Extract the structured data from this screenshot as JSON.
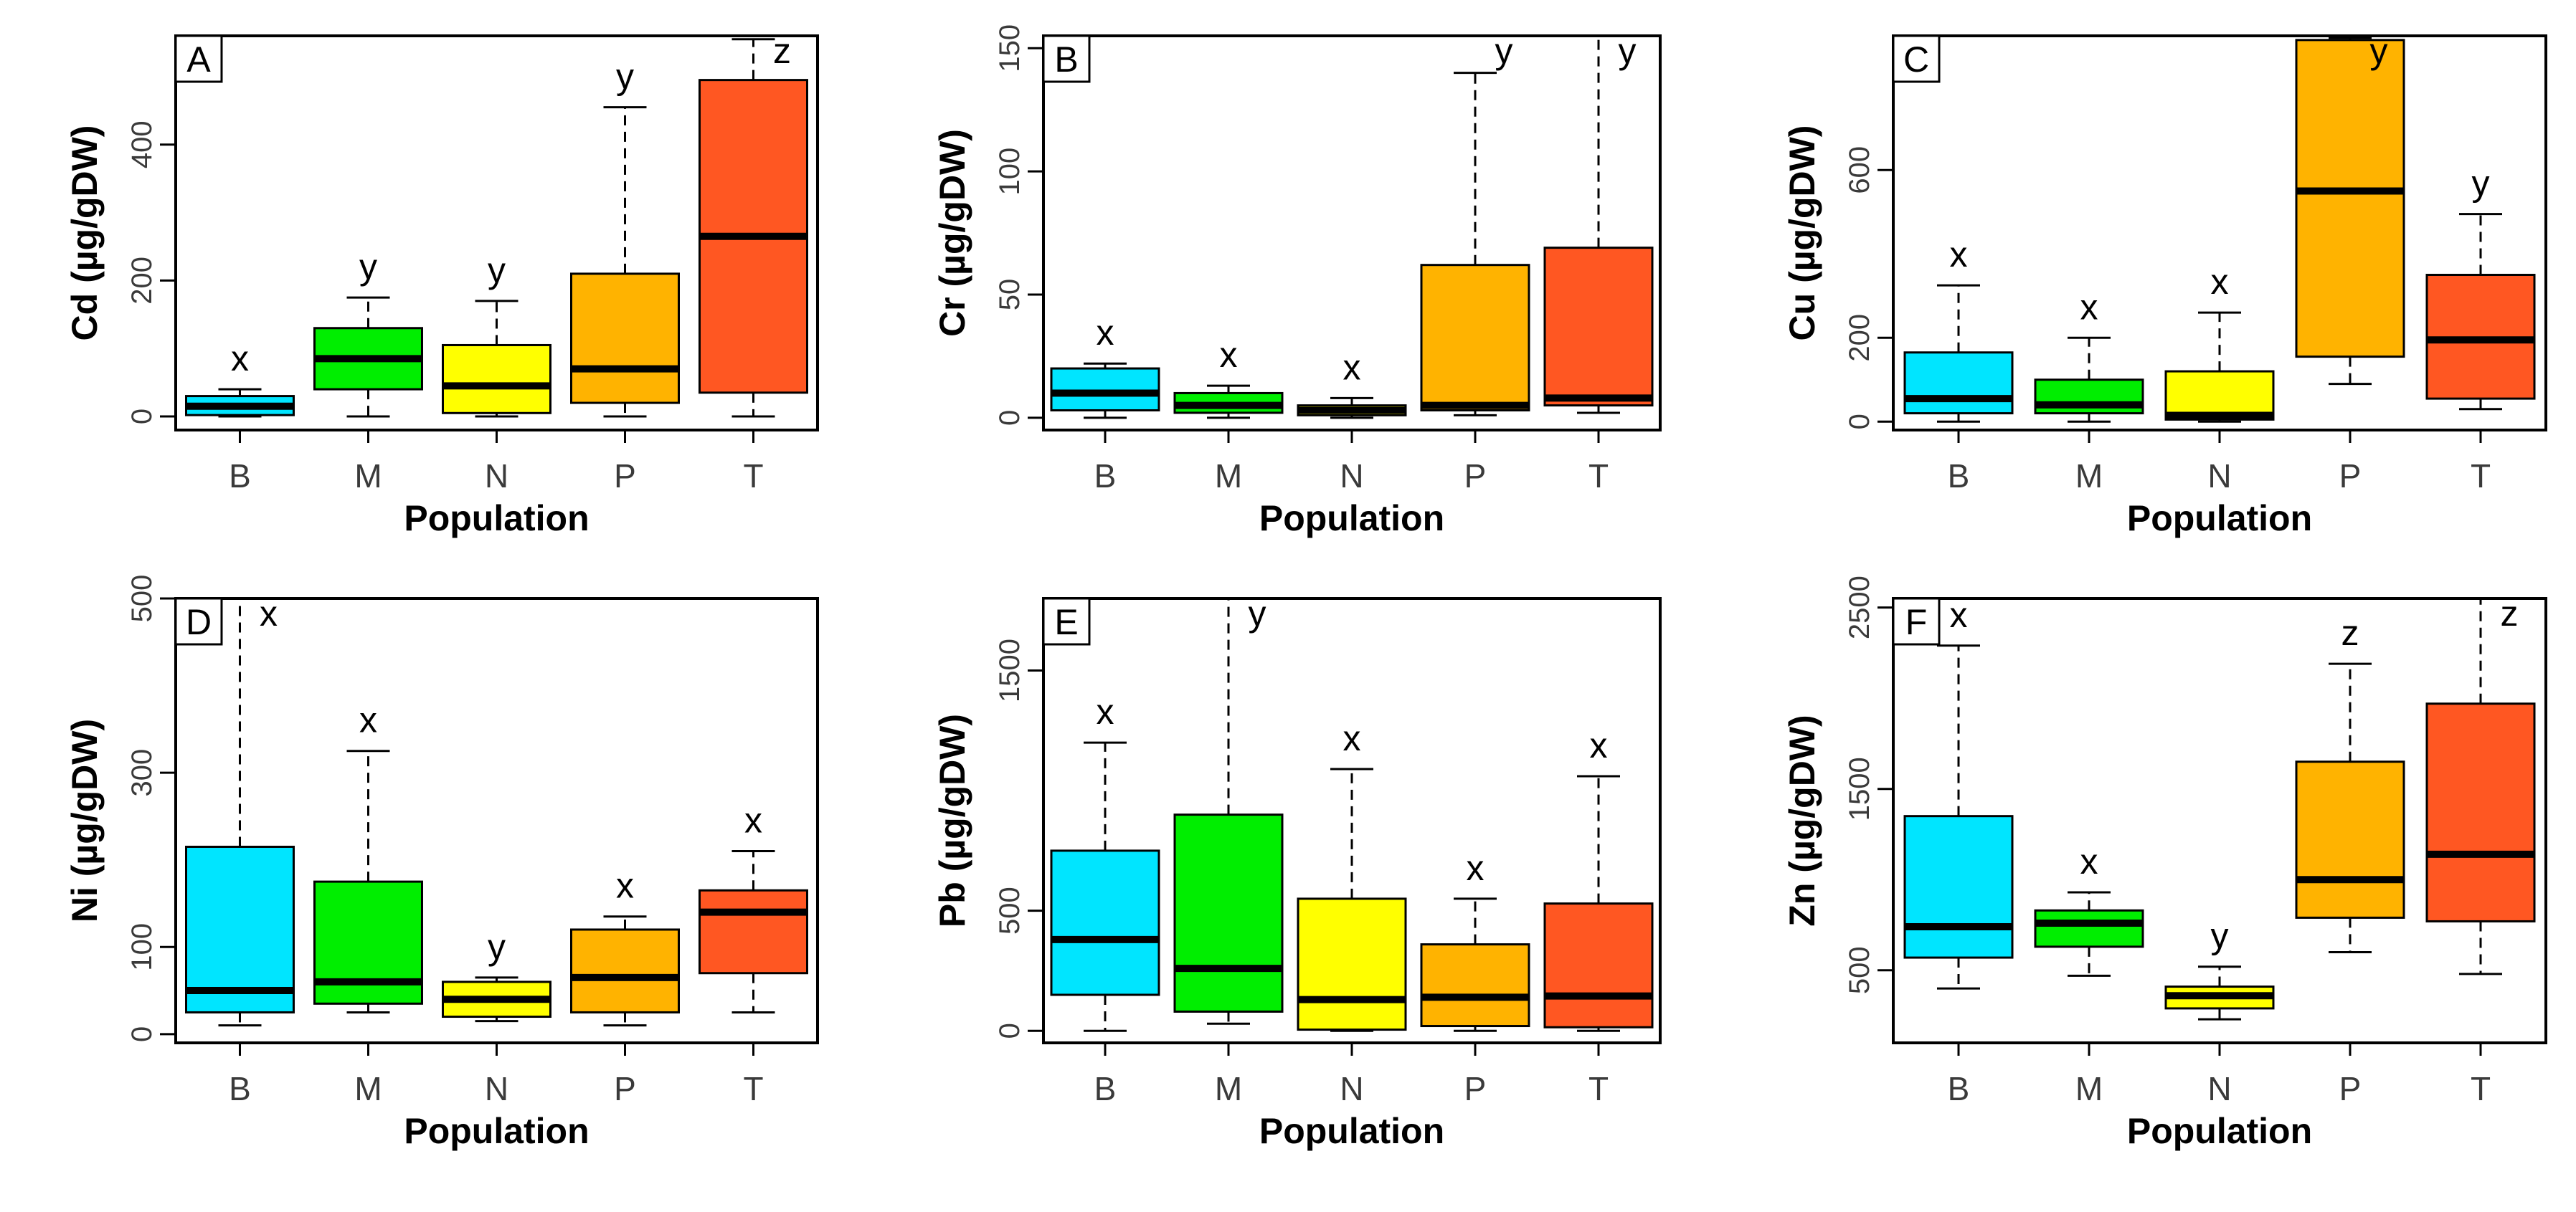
{
  "chart_data": [
    {
      "type": "box",
      "panel": "A",
      "ylabel": "Cd (µg/gDW)",
      "xlabel": "Population",
      "ylim": [
        -20,
        560
      ],
      "yticks": [
        0,
        200,
        400
      ],
      "categories": [
        "B",
        "M",
        "N",
        "P",
        "T"
      ],
      "colors": [
        "#00e5ff",
        "#00ee00",
        "#ffff00",
        "#ffb300",
        "#ff5722"
      ],
      "boxes": [
        {
          "min": 0,
          "q1": 2,
          "median": 15,
          "q3": 30,
          "max": 40
        },
        {
          "min": 0,
          "q1": 40,
          "median": 85,
          "q3": 130,
          "max": 175
        },
        {
          "min": 0,
          "q1": 5,
          "median": 45,
          "q3": 105,
          "max": 170
        },
        {
          "min": 0,
          "q1": 20,
          "median": 70,
          "q3": 210,
          "max": 455
        },
        {
          "min": 0,
          "q1": 35,
          "median": 265,
          "q3": 495,
          "max": 555
        }
      ],
      "letters": [
        "x",
        "y",
        "y",
        "y",
        "z"
      ]
    },
    {
      "type": "box",
      "panel": "B",
      "ylabel": "Cr (µg/gDW)",
      "xlabel": "Population",
      "ylim": [
        -5,
        155
      ],
      "yticks": [
        0,
        50,
        100,
        150
      ],
      "categories": [
        "B",
        "M",
        "N",
        "P",
        "T"
      ],
      "colors": [
        "#00e5ff",
        "#00ee00",
        "#ffff00",
        "#ffb300",
        "#ff5722"
      ],
      "boxes": [
        {
          "min": 0,
          "q1": 3,
          "median": 10,
          "q3": 20,
          "max": 22
        },
        {
          "min": 0,
          "q1": 2,
          "median": 5,
          "q3": 10,
          "max": 13
        },
        {
          "min": 0,
          "q1": 1,
          "median": 3,
          "q3": 5,
          "max": 8
        },
        {
          "min": 1,
          "q1": 3,
          "median": 5,
          "q3": 62,
          "max": 140
        },
        {
          "min": 2,
          "q1": 5,
          "median": 8,
          "q3": 69,
          "max": 155
        }
      ],
      "letters": [
        "x",
        "x",
        "x",
        "y",
        "y"
      ]
    },
    {
      "type": "box",
      "panel": "C",
      "ylabel": "Cu (µg/gDW)",
      "xlabel": "Population",
      "ylim": [
        -20,
        920
      ],
      "yticks": [
        0,
        200,
        600
      ],
      "categories": [
        "B",
        "M",
        "N",
        "P",
        "T"
      ],
      "colors": [
        "#00e5ff",
        "#00ee00",
        "#ffff00",
        "#ffb300",
        "#ff5722"
      ],
      "boxes": [
        {
          "min": 0,
          "q1": 20,
          "median": 55,
          "q3": 165,
          "max": 325
        },
        {
          "min": 0,
          "q1": 20,
          "median": 40,
          "q3": 100,
          "max": 200
        },
        {
          "min": 0,
          "q1": 5,
          "median": 15,
          "q3": 120,
          "max": 260
        },
        {
          "min": 90,
          "q1": 155,
          "median": 550,
          "q3": 910,
          "max": 915
        },
        {
          "min": 30,
          "q1": 55,
          "median": 195,
          "q3": 350,
          "max": 495
        }
      ],
      "letters": [
        "x",
        "x",
        "x",
        "y",
        "y"
      ]
    },
    {
      "type": "box",
      "panel": "D",
      "ylabel": "Ni (µg/gDW)",
      "xlabel": "Population",
      "ylim": [
        -10,
        500
      ],
      "yticks": [
        0,
        100,
        300,
        500
      ],
      "categories": [
        "B",
        "M",
        "N",
        "P",
        "T"
      ],
      "colors": [
        "#00e5ff",
        "#00ee00",
        "#ffff00",
        "#ffb300",
        "#ff5722"
      ],
      "boxes": [
        {
          "min": 10,
          "q1": 25,
          "median": 50,
          "q3": 215,
          "max": 500
        },
        {
          "min": 25,
          "q1": 35,
          "median": 60,
          "q3": 175,
          "max": 325
        },
        {
          "min": 15,
          "q1": 20,
          "median": 40,
          "q3": 60,
          "max": 65
        },
        {
          "min": 10,
          "q1": 25,
          "median": 65,
          "q3": 120,
          "max": 135
        },
        {
          "min": 25,
          "q1": 70,
          "median": 140,
          "q3": 165,
          "max": 210
        }
      ],
      "letters": [
        "x",
        "x",
        "y",
        "x",
        "x"
      ]
    },
    {
      "type": "box",
      "panel": "E",
      "ylabel": "Pb (µg/gDW)",
      "xlabel": "Population",
      "ylim": [
        -50,
        1800
      ],
      "yticks": [
        0,
        500,
        1500
      ],
      "categories": [
        "B",
        "M",
        "N",
        "P",
        "T"
      ],
      "colors": [
        "#00e5ff",
        "#00ee00",
        "#ffff00",
        "#ffb300",
        "#ff5722"
      ],
      "boxes": [
        {
          "min": 0,
          "q1": 150,
          "median": 380,
          "q3": 750,
          "max": 1200
        },
        {
          "min": 30,
          "q1": 80,
          "median": 260,
          "q3": 900,
          "max": 1800
        },
        {
          "min": 0,
          "q1": 5,
          "median": 130,
          "q3": 550,
          "max": 1090
        },
        {
          "min": 0,
          "q1": 20,
          "median": 140,
          "q3": 360,
          "max": 550
        },
        {
          "min": 0,
          "q1": 15,
          "median": 145,
          "q3": 530,
          "max": 1060
        }
      ],
      "letters": [
        "x",
        "y",
        "x",
        "x",
        "x"
      ]
    },
    {
      "type": "box",
      "panel": "F",
      "ylabel": "Zn (µg/gDW)",
      "xlabel": "Population",
      "ylim": [
        100,
        2550
      ],
      "yticks": [
        500,
        1500,
        2500
      ],
      "categories": [
        "B",
        "M",
        "N",
        "P",
        "T"
      ],
      "colors": [
        "#00e5ff",
        "#00ee00",
        "#ffff00",
        "#ffb300",
        "#ff5722"
      ],
      "boxes": [
        {
          "min": 400,
          "q1": 570,
          "median": 740,
          "q3": 1350,
          "max": 2290
        },
        {
          "min": 470,
          "q1": 630,
          "median": 760,
          "q3": 830,
          "max": 930
        },
        {
          "min": 230,
          "q1": 290,
          "median": 360,
          "q3": 410,
          "max": 520
        },
        {
          "min": 600,
          "q1": 790,
          "median": 1000,
          "q3": 1650,
          "max": 2190
        },
        {
          "min": 480,
          "q1": 770,
          "median": 1140,
          "q3": 1970,
          "max": 2550
        }
      ],
      "letters": [
        "x",
        "x",
        "y",
        "z",
        "z"
      ]
    }
  ]
}
